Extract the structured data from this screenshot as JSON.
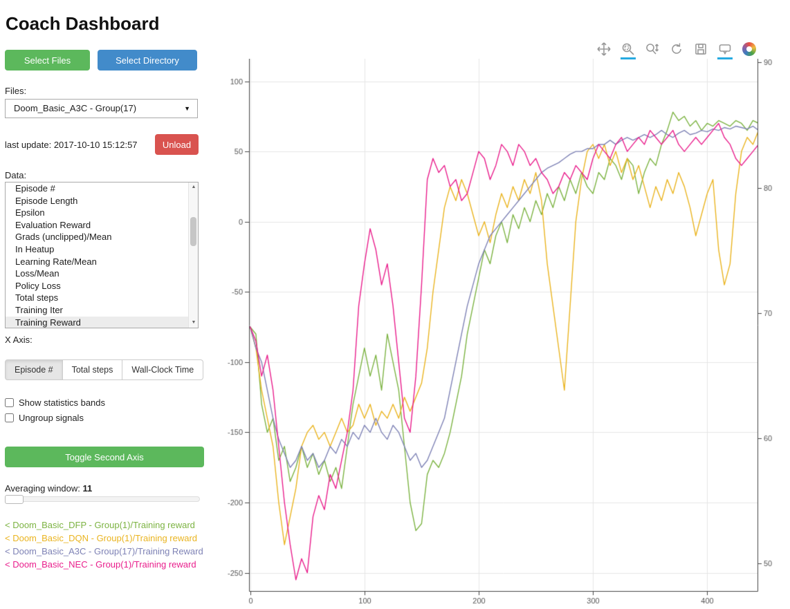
{
  "page": {
    "title": "Coach Dashboard"
  },
  "sidebar": {
    "select_files": "Select Files",
    "select_directory": "Select Directory",
    "files_label": "Files:",
    "files_select_value": "Doom_Basic_A3C - Group(17)",
    "last_update": "last update: 2017-10-10 15:12:57",
    "unload": "Unload",
    "data_label": "Data:",
    "data_items": [
      "Episode #",
      "Episode Length",
      "Epsilon",
      "Evaluation Reward",
      "Grads (unclipped)/Mean",
      "In Heatup",
      "Learning Rate/Mean",
      "Loss/Mean",
      "Policy Loss",
      "Total steps",
      "Training Iter",
      "Training Reward"
    ],
    "data_selected_index": 11,
    "x_axis_label": "X Axis:",
    "x_axis_options": [
      "Episode #",
      "Total steps",
      "Wall-Clock Time"
    ],
    "x_axis_selected": 0,
    "checkbox_stats": "Show statistics bands",
    "checkbox_ungroup": "Ungroup signals",
    "toggle_second_axis": "Toggle Second Axis",
    "averaging_label": "Averaging window:",
    "averaging_value": "11",
    "legend": [
      {
        "label": "< Doom_Basic_DFP - Group(1)/Training reward",
        "color": "#7cb342"
      },
      {
        "label": "< Doom_Basic_DQN - Group(1)/Training reward",
        "color": "#eab420"
      },
      {
        "label": "< Doom_Basic_A3C - Group(17)/Training Reward",
        "color": "#7e82b5"
      },
      {
        "label": "< Doom_Basic_NEC - Group(1)/Training reward",
        "color": "#e91e8c"
      }
    ]
  },
  "plot_toolbar": {
    "tools": [
      "pan",
      "box-zoom",
      "wheel-zoom",
      "reset",
      "save",
      "hover",
      "bokeh-logo"
    ],
    "active_tools": [
      "box-zoom",
      "hover"
    ],
    "active_underline_color": "#26aae1"
  },
  "chart_data": {
    "type": "line",
    "title": "",
    "xlabel": "",
    "ylabel": "",
    "xlim": [
      -1,
      444
    ],
    "ylim": [
      -263,
      116
    ],
    "ylim_right": [
      47.8,
      90.3
    ],
    "x_ticks": [
      0,
      100,
      200,
      300,
      400
    ],
    "y_ticks_left": [
      100,
      50,
      0,
      -50,
      -100,
      -150,
      -200,
      -250
    ],
    "y_ticks_right": [
      90,
      80,
      70,
      60,
      50
    ],
    "grid": true,
    "x_start": 0,
    "x_step": 5,
    "series": [
      {
        "name": "Doom_Basic_DFP - Group(1)/Training reward",
        "color": "#7cb342",
        "values": [
          -75,
          -80,
          -130,
          -150,
          -140,
          -170,
          -160,
          -185,
          -175,
          -160,
          -175,
          -165,
          -180,
          -170,
          -185,
          -175,
          -190,
          -160,
          -130,
          -110,
          -90,
          -110,
          -95,
          -120,
          -80,
          -100,
          -120,
          -160,
          -200,
          -220,
          -215,
          -180,
          -170,
          -175,
          -165,
          -150,
          -130,
          -110,
          -80,
          -60,
          -40,
          -20,
          -30,
          -10,
          0,
          -15,
          5,
          -5,
          10,
          0,
          15,
          5,
          20,
          10,
          25,
          15,
          30,
          20,
          35,
          25,
          20,
          35,
          30,
          45,
          40,
          30,
          45,
          40,
          20,
          35,
          45,
          40,
          55,
          65,
          78,
          72,
          75,
          68,
          72,
          65,
          70,
          68,
          72,
          70,
          68,
          72,
          70,
          65,
          72,
          70
        ]
      },
      {
        "name": "Doom_Basic_DQN - Group(1)/Training reward",
        "color": "#eab420",
        "values": [
          -75,
          -90,
          -120,
          -140,
          -160,
          -200,
          -230,
          -210,
          -190,
          -160,
          -150,
          -145,
          -155,
          -150,
          -160,
          -150,
          -140,
          -150,
          -145,
          -130,
          -140,
          -130,
          -145,
          -135,
          -140,
          -130,
          -140,
          -125,
          -135,
          -125,
          -115,
          -90,
          -50,
          -20,
          10,
          25,
          15,
          30,
          20,
          5,
          -10,
          0,
          -15,
          5,
          20,
          10,
          25,
          15,
          30,
          20,
          35,
          15,
          -30,
          -60,
          -90,
          -120,
          -60,
          0,
          30,
          50,
          55,
          45,
          55,
          40,
          50,
          35,
          45,
          30,
          40,
          25,
          10,
          25,
          15,
          30,
          20,
          35,
          25,
          10,
          -10,
          5,
          20,
          30,
          -20,
          -45,
          -30,
          20,
          50,
          60,
          55,
          65
        ]
      },
      {
        "name": "Doom_Basic_A3C - Group(17)/Training Reward",
        "color": "#7e82b5",
        "values": [
          -75,
          -90,
          -100,
          -120,
          -140,
          -155,
          -165,
          -175,
          -170,
          -160,
          -170,
          -165,
          -175,
          -170,
          -160,
          -165,
          -155,
          -160,
          -150,
          -155,
          -145,
          -150,
          -140,
          -150,
          -155,
          -145,
          -150,
          -160,
          -170,
          -165,
          -175,
          -170,
          -160,
          -150,
          -140,
          -120,
          -100,
          -80,
          -60,
          -45,
          -30,
          -20,
          -10,
          -5,
          0,
          5,
          10,
          15,
          20,
          25,
          30,
          35,
          38,
          40,
          42,
          45,
          48,
          50,
          50,
          52,
          52,
          55,
          55,
          58,
          55,
          58,
          60,
          58,
          60,
          62,
          60,
          62,
          65,
          62,
          60,
          63,
          65,
          62,
          63,
          65,
          64,
          66,
          65,
          67,
          66,
          68,
          67,
          66,
          68,
          65
        ]
      },
      {
        "name": "Doom_Basic_NEC - Group(1)/Training reward",
        "color": "#e91e8c",
        "values": [
          -75,
          -85,
          -110,
          -95,
          -120,
          -160,
          -200,
          -230,
          -255,
          -240,
          -250,
          -210,
          -195,
          -205,
          -180,
          -190,
          -170,
          -150,
          -120,
          -60,
          -30,
          -5,
          -20,
          -45,
          -30,
          -60,
          -100,
          -140,
          -150,
          -110,
          -45,
          30,
          45,
          35,
          40,
          25,
          30,
          15,
          20,
          35,
          50,
          45,
          30,
          40,
          55,
          50,
          40,
          55,
          50,
          40,
          45,
          35,
          30,
          20,
          25,
          35,
          30,
          40,
          35,
          30,
          45,
          55,
          50,
          45,
          55,
          60,
          50,
          55,
          60,
          55,
          65,
          60,
          55,
          60,
          65,
          55,
          50,
          55,
          60,
          55,
          60,
          65,
          70,
          60,
          55,
          45,
          40,
          45,
          50,
          55
        ]
      }
    ]
  }
}
